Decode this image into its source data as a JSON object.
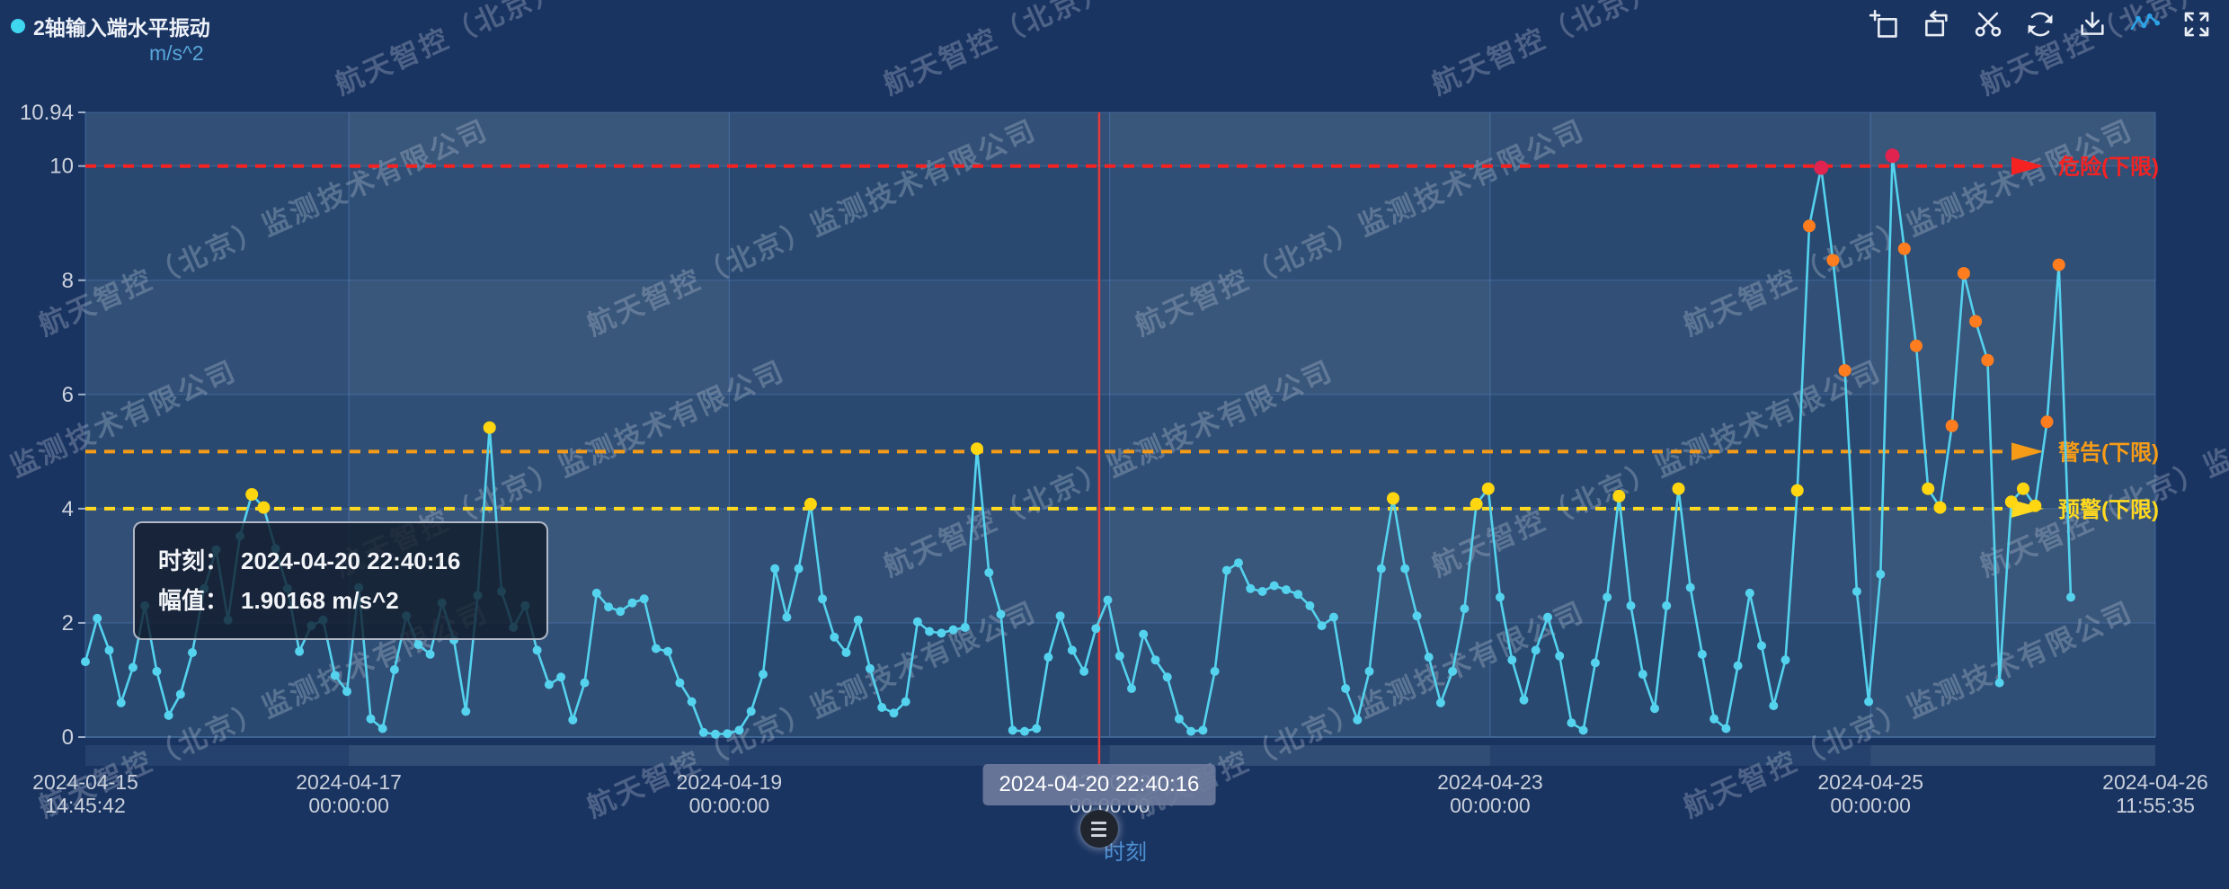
{
  "page": {
    "background": "#1a3462",
    "plot_background": "#294971",
    "watermark": {
      "text": "航天智控（北京）监测技术有限公司",
      "color": "rgba(195,204,220,0.30)"
    }
  },
  "legend": {
    "label": "2轴输入端水平振动",
    "dot_color": "#3fd6f0"
  },
  "toolbar": {
    "color": "#e9edf4",
    "active_color": "#2da4e8",
    "icons": [
      {
        "name": "zoom-select-icon",
        "active": false
      },
      {
        "name": "zoom-restore-icon",
        "active": false
      },
      {
        "name": "clip-icon",
        "active": false
      },
      {
        "name": "refresh-icon",
        "active": false
      },
      {
        "name": "download-icon",
        "active": false
      },
      {
        "name": "line-chart-icon",
        "active": true
      },
      {
        "name": "fullscreen-icon",
        "active": false
      }
    ]
  },
  "tooltip": {
    "row1_label": "时刻：",
    "row1_value": "2024-04-20 22:40:16",
    "row2_label": "幅值：",
    "row2_value": "1.90168 m/s^2"
  },
  "axis_pointer": {
    "label": "2024-04-20 22:40:16",
    "time": "2024-04-20 22:40:16",
    "line_color": "#e23b3b"
  },
  "chart_data": {
    "type": "line",
    "title": "2轴输入端水平振动",
    "unit": "m/s^2",
    "x_name": "时刻",
    "x_start": "2024-04-15 14:45:42",
    "x_end": "2024-04-26 11:55:35",
    "sample_interval_minutes": 90,
    "ylim": [
      0,
      10.94
    ],
    "grid": true,
    "y_ticks": [
      {
        "label": "0",
        "value": 0
      },
      {
        "label": "2",
        "value": 2
      },
      {
        "label": "4",
        "value": 4
      },
      {
        "label": "6",
        "value": 6
      },
      {
        "label": "8",
        "value": 8
      },
      {
        "label": "10",
        "value": 10
      },
      {
        "label": "10.94",
        "value": 10.94
      }
    ],
    "x_ticks": [
      {
        "time": "2024-04-15 14:45:42",
        "lines": [
          "2024-04-15",
          "14:45:42"
        ]
      },
      {
        "time": "2024-04-17 00:00:00",
        "lines": [
          "2024-04-17",
          "00:00:00"
        ]
      },
      {
        "time": "2024-04-19 00:00:00",
        "lines": [
          "2024-04-19",
          "00:00:00"
        ]
      },
      {
        "time": "2024-04-21 00:00:00",
        "lines": [
          "2024-04-21",
          "00:00:00"
        ]
      },
      {
        "time": "2024-04-23 00:00:00",
        "lines": [
          "2024-04-23",
          "00:00:00"
        ]
      },
      {
        "time": "2024-04-25 00:00:00",
        "lines": [
          "2024-04-25",
          "00:00:00"
        ]
      },
      {
        "time": "2024-04-26 11:55:35",
        "lines": [
          "2024-04-26",
          "11:55:35"
        ]
      }
    ],
    "thresholds": [
      {
        "label": "危险(下限)",
        "value": 10,
        "color": "#f52222"
      },
      {
        "label": "警告(下限)",
        "value": 5,
        "color": "#f59b17"
      },
      {
        "label": "预警(下限)",
        "value": 4,
        "color": "#ffd91f"
      }
    ],
    "line_color": "#54d2ee",
    "point_colors": {
      "normal": "#54d2ee",
      "pre_alarm": "#ffd60f",
      "alarm": "#ff7d1e",
      "danger": "#e1234f"
    },
    "point_color_breaks": [
      4,
      5.45,
      9.9
    ],
    "selected_point": {
      "time": "2024-04-20 22:40:16",
      "value": 1.90168
    },
    "values": [
      1.32,
      2.08,
      1.52,
      0.6,
      1.22,
      2.3,
      1.15,
      0.38,
      0.75,
      1.48,
      2.6,
      3.28,
      2.05,
      3.52,
      4.25,
      4.02,
      3.3,
      2.6,
      1.5,
      1.95,
      2.05,
      1.08,
      0.8,
      2.62,
      0.32,
      0.15,
      1.18,
      2.12,
      1.62,
      1.45,
      2.35,
      1.7,
      0.45,
      2.48,
      5.42,
      2.55,
      1.92,
      2.3,
      1.52,
      0.92,
      1.05,
      0.3,
      0.95,
      2.52,
      2.28,
      2.2,
      2.35,
      2.42,
      1.55,
      1.5,
      0.95,
      0.62,
      0.08,
      0.05,
      0.06,
      0.12,
      0.45,
      1.1,
      2.95,
      2.1,
      2.95,
      4.08,
      2.42,
      1.75,
      1.48,
      2.05,
      1.2,
      0.52,
      0.42,
      0.62,
      2.02,
      1.85,
      1.82,
      1.88,
      1.92,
      5.05,
      2.88,
      2.15,
      0.12,
      0.1,
      0.15,
      1.4,
      2.12,
      1.52,
      1.15,
      1.90168,
      2.4,
      1.42,
      0.85,
      1.8,
      1.35,
      1.05,
      0.32,
      0.1,
      0.12,
      1.15,
      2.92,
      3.05,
      2.6,
      2.55,
      2.65,
      2.58,
      2.5,
      2.3,
      1.95,
      2.1,
      0.85,
      0.3,
      1.15,
      2.95,
      4.18,
      2.95,
      2.12,
      1.4,
      0.6,
      1.15,
      2.25,
      4.08,
      4.35,
      2.45,
      1.35,
      0.65,
      1.52,
      2.1,
      1.42,
      0.25,
      0.12,
      1.3,
      2.45,
      4.22,
      2.3,
      1.1,
      0.5,
      2.3,
      4.35,
      2.62,
      1.45,
      0.32,
      0.15,
      1.25,
      2.52,
      1.6,
      0.55,
      1.35,
      4.32,
      8.95,
      9.97,
      8.35,
      6.42,
      2.55,
      0.62,
      2.85,
      10.18,
      8.55,
      6.85,
      4.35,
      4.02,
      5.45,
      8.12,
      7.28,
      6.6,
      0.95,
      4.12,
      4.35,
      4.05,
      5.52,
      8.27,
      2.45
    ]
  }
}
